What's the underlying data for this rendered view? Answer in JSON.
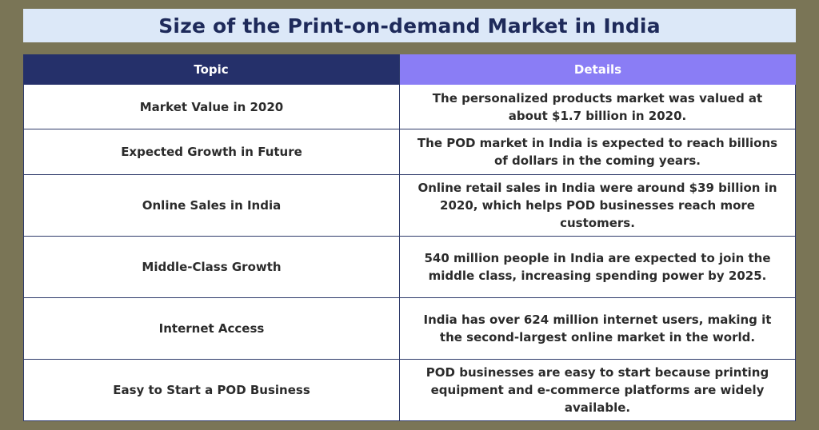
{
  "title": "Size of the Print-on-demand Market in India",
  "colors": {
    "background": "#7a7556",
    "title_banner": "#dce8f8",
    "title_text": "#1e2a5a",
    "header_topic": "#25306a",
    "header_details": "#8a7df5"
  },
  "table": {
    "headers": [
      "Topic",
      "Details"
    ],
    "rows": [
      {
        "topic": "Market Value in 2020",
        "details": "The personalized products market was valued at about $1.7 billion in 2020."
      },
      {
        "topic": "Expected Growth in Future",
        "details": "The POD market in India is expected to reach billions of dollars in the coming years."
      },
      {
        "topic": "Online Sales in India",
        "details": "Online retail sales in India were around $39 billion in 2020, which helps POD businesses reach more customers."
      },
      {
        "topic": "Middle-Class Growth",
        "details": "540 million people in India are expected to join the middle class, increasing spending power by 2025."
      },
      {
        "topic": "Internet Access",
        "details": "India has over 624 million internet users, making it the second-largest online market in the world."
      },
      {
        "topic": "Easy to Start a POD Business",
        "details": "POD businesses are easy to start because printing equipment and e-commerce platforms are widely available."
      }
    ]
  }
}
